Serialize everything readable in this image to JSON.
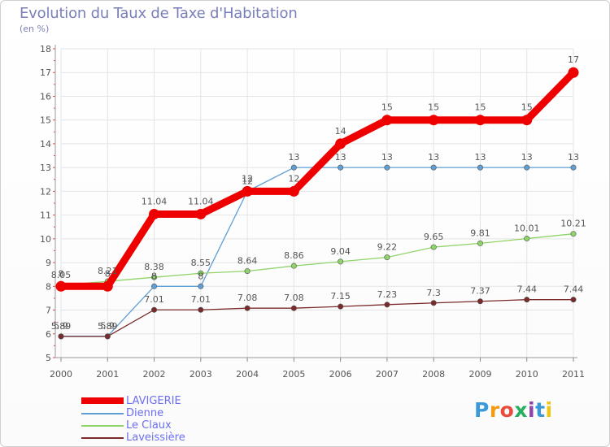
{
  "title": "Evolution du Taux de Taxe d'Habitation",
  "subtitle": "(en %)",
  "logo": {
    "text": "Proxiti",
    "letters": [
      "P",
      "r",
      "o",
      "x",
      "i",
      "t",
      "i"
    ],
    "colors": [
      "#3a9ad9",
      "#f39c12",
      "#e74c3c",
      "#27ae60",
      "#8e44ad",
      "#3a9ad9",
      "#f1c40f"
    ]
  },
  "chart_data": {
    "type": "line",
    "title": "Evolution du Taux de Taxe d'Habitation",
    "ylabel": "(en %)",
    "xlabel": "",
    "categories": [
      "2000",
      "2001",
      "2002",
      "2003",
      "2004",
      "2005",
      "2006",
      "2007",
      "2008",
      "2009",
      "2010",
      "2011"
    ],
    "ylim": [
      5,
      18
    ],
    "yticks": [
      "5",
      "6",
      "7",
      "8",
      "9",
      "10",
      "11",
      "12",
      "13",
      "14",
      "15",
      "16",
      "17",
      "18"
    ],
    "grid": true,
    "legend": "bottom-left",
    "series": [
      {
        "name": "LAVIGERIE",
        "color": "#ee0000",
        "emphasis": true,
        "values": [
          8,
          8,
          11.04,
          11.04,
          12,
          12,
          14,
          15,
          15,
          15,
          15,
          17
        ],
        "labels": [
          "8",
          "8",
          "11.04",
          "11.04",
          "12",
          "12",
          "14",
          "15",
          "15",
          "15",
          "15",
          "17"
        ]
      },
      {
        "name": "Dienne",
        "color": "#5f9fd6",
        "values": [
          5.9,
          5.9,
          8,
          8,
          12,
          13,
          13,
          13,
          13,
          13,
          13,
          13
        ],
        "labels": [
          "5.9",
          "5.9",
          "8",
          "8",
          "12",
          "13",
          "13",
          "13",
          "13",
          "13",
          "13",
          "13"
        ]
      },
      {
        "name": "Le Claux",
        "color": "#8fd468",
        "values": [
          8.05,
          8.21,
          8.38,
          8.55,
          8.64,
          8.86,
          9.04,
          9.22,
          9.65,
          9.81,
          10.01,
          10.21
        ],
        "labels": [
          "8.05",
          "8.21",
          "8.38",
          "8.55",
          "8.64",
          "8.86",
          "9.04",
          "9.22",
          "9.65",
          "9.81",
          "10.01",
          "10.21"
        ]
      },
      {
        "name": "Laveissière",
        "color": "#7a2a2a",
        "values": [
          5.89,
          5.89,
          7.01,
          7.01,
          7.08,
          7.08,
          7.15,
          7.23,
          7.3,
          7.37,
          7.44,
          7.44
        ],
        "labels": [
          "5.89",
          "5.89",
          "7.01",
          "7.01",
          "7.08",
          "7.08",
          "7.15",
          "7.23",
          "7.3",
          "7.37",
          "7.44",
          "7.44"
        ]
      }
    ]
  }
}
